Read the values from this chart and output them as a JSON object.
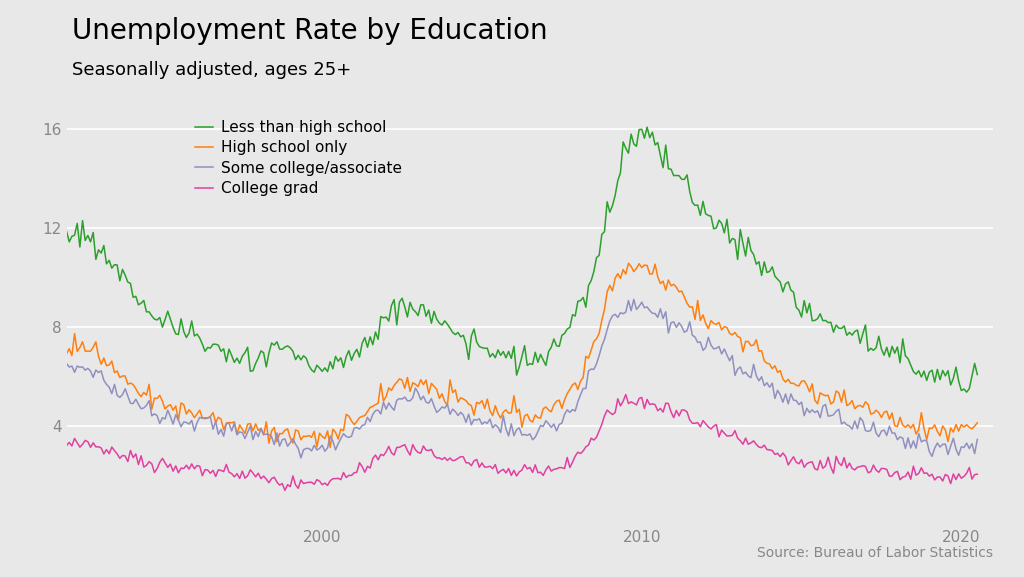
{
  "title": "Unemployment Rate by Education",
  "subtitle": "Seasonally adjusted, ages 25+",
  "source": "Source: Bureau of Labor Statistics",
  "colors": {
    "less_than_hs": "#2ca02c",
    "high_school": "#ff7f0e",
    "some_college": "#9090c0",
    "college_grad": "#e040a0"
  },
  "labels": {
    "less_than_hs": "Less than high school",
    "high_school": "High school only",
    "some_college": "Some college/associate",
    "college_grad": "College grad"
  },
  "ylim": [
    0,
    17
  ],
  "yticks": [
    4,
    8,
    12,
    16
  ],
  "background_color": "#e8e8e8",
  "title_fontsize": 20,
  "subtitle_fontsize": 13,
  "source_fontsize": 10,
  "linewidth": 1.1
}
